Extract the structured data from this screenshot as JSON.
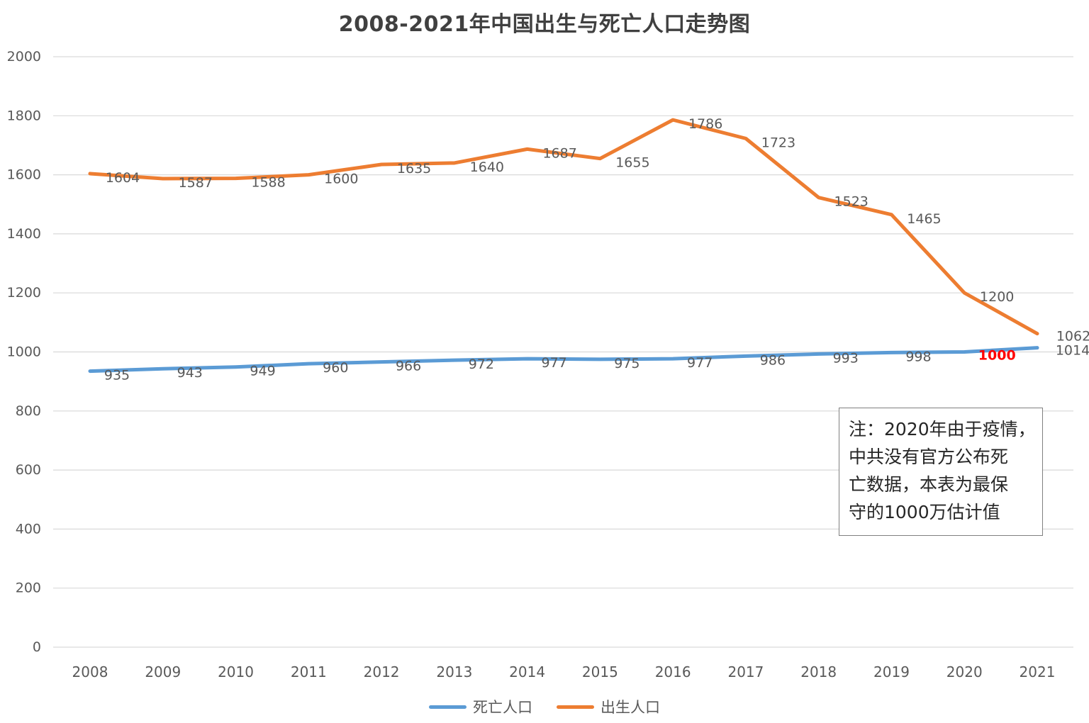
{
  "chart_data": {
    "type": "line",
    "title": "2008-2021年中国出生与死亡人口走势图",
    "categories": [
      "2008",
      "2009",
      "2010",
      "2011",
      "2012",
      "2013",
      "2014",
      "2015",
      "2016",
      "2017",
      "2018",
      "2019",
      "2020",
      "2021"
    ],
    "series": [
      {
        "name": "死亡人口",
        "color": "#5B9BD5",
        "values": [
          935,
          943,
          949,
          960,
          966,
          972,
          977,
          975,
          977,
          986,
          993,
          998,
          1000,
          1014
        ],
        "highlight": {
          "index": 12,
          "color": "#FF0000",
          "bold": true
        }
      },
      {
        "name": "出生人口",
        "color": "#ED7D31",
        "values": [
          1604,
          1587,
          1588,
          1600,
          1635,
          1640,
          1687,
          1655,
          1786,
          1723,
          1523,
          1465,
          1200,
          1062
        ]
      }
    ],
    "ylim": [
      0,
      2000
    ],
    "ytick_step": 200,
    "grid": "horizontal-only",
    "legend_position": "bottom-center",
    "data_labels": true,
    "label_color": "#595959",
    "axis_color": "#595959",
    "grid_color": "#D9D9D9",
    "annotation": "注：2020年由于疫情，\n中共没有官方公布死\n亡数据，本表为最保\n守的1000万估计值"
  }
}
